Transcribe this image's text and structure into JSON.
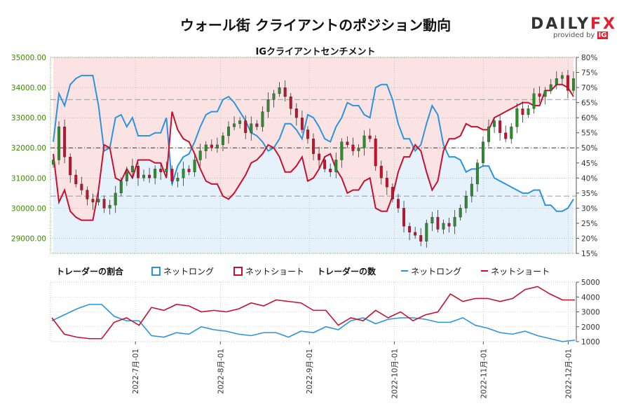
{
  "title": "ウォール街 クライアントのポジション動向",
  "subtitle": "IGクライアントセンチメント",
  "logo": {
    "main_a": "DAILY",
    "main_b": "FX",
    "sub": "provided by",
    "sub_ig": "IG"
  },
  "legend": {
    "ratio_title": "トレーダーの割合",
    "ratio_long": "ネットロング",
    "ratio_short": "ネットショート",
    "count_title": "トレーダーの数",
    "count_long": "ネットロング",
    "count_short": "ネットショート"
  },
  "colors": {
    "long": "#2a94e0",
    "short": "#c8102e",
    "long_fill": "#e6f2fb",
    "short_fill": "#fbe3e4",
    "candle_up": "#2e8b2e",
    "candle_down": "#c8102e",
    "price_axis": "#3a8a00"
  },
  "chart_data": [
    {
      "type": "candlestick",
      "title": "IGクライアントセンチメント",
      "price_axis": {
        "side": "left",
        "ylim": [
          28500,
          35000
        ],
        "ticks": [
          "35000.00",
          "34000.00",
          "33000.00",
          "32000.00",
          "31000.00",
          "30000.00",
          "29000.00"
        ]
      },
      "pct_axis": {
        "side": "right",
        "ylim": [
          15,
          80
        ],
        "ticks": [
          "80%",
          "75%",
          "70%",
          "65%",
          "60%",
          "55%",
          "50%",
          "45%",
          "40%",
          "35%",
          "30%",
          "25%",
          "20%",
          "15%"
        ]
      },
      "close": [
        31600,
        32700,
        31700,
        31100,
        30800,
        30600,
        30300,
        30200,
        30300,
        30000,
        30100,
        30500,
        30900,
        31200,
        31400,
        31000,
        31100,
        31000,
        31300,
        31200,
        31300,
        30900,
        31000,
        31300,
        31200,
        31600,
        31900,
        32100,
        32000,
        32100,
        32400,
        32700,
        32800,
        32900,
        32500,
        32800,
        32700,
        33200,
        33600,
        33800,
        34000,
        33700,
        33300,
        33000,
        32600,
        32300,
        31800,
        31600,
        31300,
        31200,
        31600,
        32200,
        32100,
        31900,
        32000,
        32400,
        32300,
        31400,
        31000,
        30700,
        30300,
        30000,
        29400,
        29200,
        29100,
        28900,
        29500,
        29700,
        29300,
        29500,
        29400,
        29700,
        30000,
        30400,
        30800,
        31500,
        32200,
        32700,
        32900,
        32500,
        32300,
        32700,
        33300,
        33100,
        33300,
        33800,
        33700,
        33900,
        34100,
        34300,
        34400,
        33900,
        34300
      ],
      "pct_long": [
        52,
        68,
        64,
        71,
        73,
        74,
        74,
        74,
        64,
        49,
        50,
        60,
        61,
        57,
        60,
        54,
        54,
        54,
        55,
        55,
        60,
        38,
        44,
        47,
        48,
        52,
        57,
        61,
        62,
        62,
        66,
        67,
        65,
        62,
        59,
        55,
        54,
        52,
        49,
        50,
        53,
        58,
        58,
        56,
        53,
        61,
        60,
        57,
        53,
        52,
        57,
        60,
        65,
        64,
        64,
        61,
        60,
        70,
        71,
        71,
        66,
        58,
        53,
        53,
        49,
        51,
        58,
        64,
        61,
        51,
        47,
        47,
        46,
        42,
        43,
        43,
        44,
        44,
        40,
        39,
        38,
        37,
        36,
        35,
        35,
        36,
        36,
        31,
        31,
        29,
        29,
        30,
        33
      ]
    },
    {
      "type": "line",
      "title": "トレーダーの数",
      "ylim": [
        1000,
        5000
      ],
      "yticks": [
        "5000",
        "4000",
        "3000",
        "2000",
        "1000"
      ],
      "x_ticks": [
        "2022-7月-01",
        "2022-8月-01",
        "2022-9月-01",
        "2022-10月-01",
        "2022-11月-01",
        "2022-12月-01"
      ],
      "series": [
        {
          "name": "ネットロング",
          "values": [
            2400,
            2800,
            3200,
            3500,
            3500,
            2700,
            2400,
            2400,
            1400,
            1300,
            1600,
            1500,
            2000,
            1800,
            1700,
            1500,
            1400,
            1600,
            1600,
            1300,
            1700,
            1600,
            2000,
            1800,
            2400,
            2600,
            2200,
            2500,
            2600,
            2600,
            2500,
            2300,
            2300,
            2600,
            2100,
            1900,
            1600,
            1500,
            1700,
            1400,
            1200,
            1000,
            1100
          ]
        },
        {
          "name": "ネットショート",
          "values": [
            2600,
            1500,
            1300,
            1200,
            1200,
            2300,
            2600,
            2100,
            3300,
            3100,
            3500,
            3400,
            3000,
            3100,
            3000,
            3200,
            3600,
            3400,
            3800,
            3700,
            3600,
            3100,
            3100,
            2100,
            2600,
            2400,
            3100,
            2600,
            3000,
            2400,
            2800,
            3000,
            4200,
            3700,
            3900,
            3900,
            3700,
            3900,
            4500,
            4700,
            4200,
            3800,
            3800
          ]
        }
      ]
    }
  ]
}
